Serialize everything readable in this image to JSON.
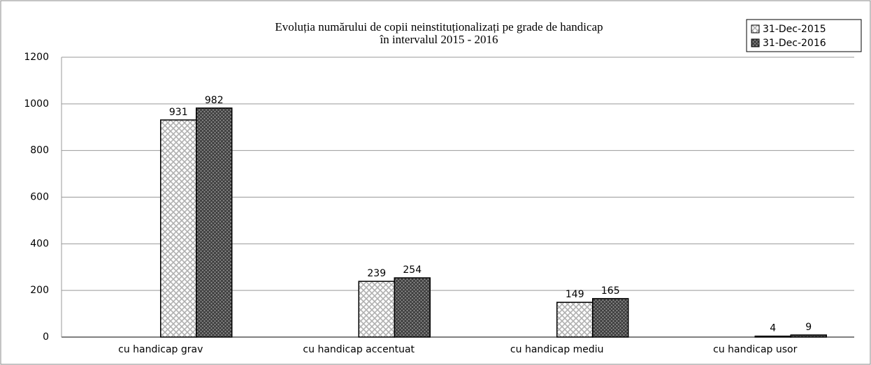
{
  "chart_data": {
    "type": "bar",
    "title": [
      "Evoluția numărului de copii neinstituționalizați pe grade de handicap",
      "în intervalul 2015 - 2016"
    ],
    "categories": [
      "cu handicap grav",
      "cu handicap accentuat",
      "cu handicap mediu",
      "cu handicap usor"
    ],
    "series": [
      {
        "name": "31-Dec-2015",
        "color": "#b0b0b0",
        "values": [
          931,
          239,
          149,
          4
        ]
      },
      {
        "name": "31-Dec-2016",
        "color": "#3a3a3a",
        "values": [
          982,
          254,
          165,
          9
        ]
      }
    ],
    "ylim": [
      0,
      1200
    ],
    "yticks": [
      0,
      200,
      400,
      600,
      800,
      1000,
      1200
    ],
    "grid": true,
    "legend": "top-right"
  }
}
